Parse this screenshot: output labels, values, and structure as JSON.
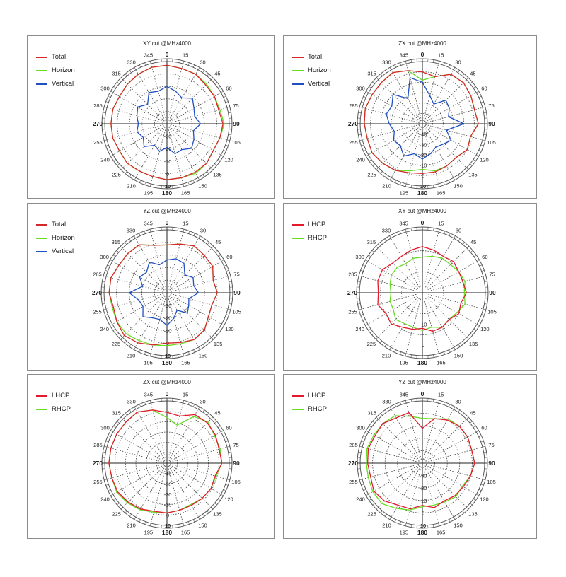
{
  "chart_data": [
    {
      "type": "polar-line",
      "title": "XY cut @MHz4000",
      "theta_labels": [
        "0",
        "15",
        "30",
        "45",
        "60",
        "75",
        "90",
        "105",
        "120",
        "135",
        "150",
        "165",
        "180",
        "195",
        "210",
        "225",
        "240",
        "255",
        "270",
        "285",
        "300",
        "315",
        "330",
        "345"
      ],
      "radial_labels": [
        "-30",
        "-20",
        "-10",
        "0",
        "10"
      ],
      "rlim": [
        -40,
        10
      ],
      "angles": [
        0,
        15,
        30,
        45,
        60,
        75,
        90,
        105,
        120,
        135,
        150,
        165,
        180,
        195,
        210,
        225,
        240,
        255,
        270,
        285,
        300,
        315,
        330,
        345
      ],
      "series": [
        {
          "name": "Total",
          "color": "#d62728",
          "values": [
            7,
            6,
            6,
            4,
            4,
            3,
            5,
            4,
            3,
            5,
            5,
            5,
            5,
            4,
            4,
            5,
            4,
            5,
            5,
            5,
            4,
            5,
            6,
            7
          ]
        },
        {
          "name": "Horizon",
          "color": "#66dd22",
          "values": [
            7,
            6,
            6,
            5,
            4,
            4,
            6,
            4,
            3,
            5,
            6,
            5,
            5,
            4,
            4,
            5,
            4,
            5,
            5,
            5,
            4,
            5,
            6,
            7
          ]
        },
        {
          "name": "Vertical",
          "color": "#1f4fc2",
          "values": [
            -10,
            -13,
            -16,
            -11,
            -15,
            -17,
            -13,
            -18,
            -15,
            -12,
            -16,
            -15,
            -21,
            -17,
            -20,
            -14,
            -18,
            -15,
            -17,
            -15,
            -13,
            -18,
            -11,
            -13
          ]
        }
      ]
    },
    {
      "type": "polar-line",
      "title": "ZX cut @MHz4000",
      "theta_labels": [
        "0",
        "15",
        "30",
        "45",
        "60",
        "75",
        "90",
        "105",
        "120",
        "135",
        "150",
        "165",
        "180",
        "195",
        "210",
        "225",
        "240",
        "255",
        "270",
        "285",
        "300",
        "315",
        "330",
        "345"
      ],
      "radial_labels": [
        "-40",
        "-30",
        "-20",
        "-10",
        "0",
        "10"
      ],
      "rlim": [
        -50,
        10
      ],
      "angles": [
        0,
        15,
        30,
        45,
        60,
        75,
        90,
        105,
        120,
        135,
        150,
        165,
        180,
        195,
        210,
        225,
        240,
        255,
        270,
        285,
        300,
        315,
        330,
        345
      ],
      "series": [
        {
          "name": "Total",
          "color": "#d62728",
          "values": [
            0,
            -3,
            5,
            6,
            4,
            2,
            4,
            -2,
            0,
            -4,
            -3,
            -2,
            -2,
            -1,
            2,
            4,
            6,
            5,
            6,
            7,
            6,
            6,
            7,
            3
          ]
        },
        {
          "name": "Horizon",
          "color": "#66dd22",
          "values": [
            -8,
            -3,
            5,
            6,
            4,
            2,
            4,
            -2,
            0,
            -4,
            -3,
            -3,
            -6,
            -3,
            2,
            4,
            6,
            5,
            6,
            7,
            6,
            6,
            7,
            3
          ]
        },
        {
          "name": "Vertical",
          "color": "#1f4fc2",
          "values": [
            -10,
            -22,
            -28,
            -18,
            -20,
            -24,
            -10,
            -26,
            -18,
            -22,
            -24,
            -20,
            -16,
            -20,
            -14,
            -20,
            -18,
            -22,
            -18,
            -14,
            -16,
            -10,
            -22,
            -4
          ]
        }
      ]
    },
    {
      "type": "polar-line",
      "title": "YZ cut @MHz4000",
      "theta_labels": [
        "0",
        "15",
        "30",
        "45",
        "60",
        "75",
        "90",
        "105",
        "120",
        "135",
        "150",
        "165",
        "180",
        "195",
        "210",
        "225",
        "240",
        "255",
        "270",
        "285",
        "300",
        "315",
        "330",
        "345"
      ],
      "radial_labels": [
        "-30",
        "-20",
        "-10",
        "0",
        "10"
      ],
      "rlim": [
        -40,
        10
      ],
      "angles": [
        0,
        15,
        30,
        45,
        60,
        75,
        90,
        105,
        120,
        135,
        150,
        165,
        180,
        195,
        210,
        225,
        240,
        255,
        270,
        285,
        300,
        315,
        330,
        345
      ],
      "series": [
        {
          "name": "Total",
          "color": "#d62728",
          "values": [
            -2,
            0,
            3,
            2,
            2,
            -2,
            0,
            -3,
            -2,
            2,
            3,
            1,
            0,
            3,
            6,
            8,
            6,
            4,
            6,
            6,
            4,
            4,
            4,
            -1
          ]
        },
        {
          "name": "Horizon",
          "color": "#66dd22",
          "values": [
            -2,
            0,
            3,
            2,
            2,
            -2,
            0,
            -3,
            -2,
            2,
            3,
            2,
            2,
            3,
            4,
            6,
            6,
            5,
            6,
            6,
            4,
            4,
            4,
            -1
          ]
        },
        {
          "name": "Vertical",
          "color": "#1f4fc2",
          "values": [
            -14,
            -12,
            -13,
            -20,
            -16,
            -18,
            -15,
            -22,
            -20,
            -17,
            -24,
            -19,
            -14,
            -18,
            -17,
            -13,
            -18,
            -17,
            -10,
            -20,
            -15,
            -17,
            -12,
            -17
          ]
        }
      ]
    },
    {
      "type": "polar-line",
      "title": "XY cut @MHz4000",
      "theta_labels": [
        "0",
        "15",
        "30",
        "45",
        "60",
        "75",
        "90",
        "105",
        "120",
        "135",
        "150",
        "165",
        "180",
        "195",
        "210",
        "225",
        "240",
        "255",
        "270",
        "285",
        "300",
        "315",
        "330",
        "345"
      ],
      "radial_labels": [
        "-10",
        "0"
      ],
      "rlim": [
        -25,
        5
      ],
      "angles": [
        0,
        15,
        30,
        45,
        60,
        75,
        90,
        105,
        120,
        135,
        150,
        165,
        180,
        195,
        210,
        225,
        240,
        255,
        270,
        285,
        300,
        315,
        330,
        345
      ],
      "series": [
        {
          "name": "LHCP",
          "color": "#e41a2c",
          "values": [
            -3,
            -4,
            -5,
            -4,
            -5,
            -5,
            -4,
            -6,
            -5,
            -7,
            -6,
            -6,
            -8,
            -7,
            -6,
            -4,
            -5,
            -3,
            -4,
            -3,
            -3,
            -5,
            -5,
            -4
          ]
        },
        {
          "name": "RHCP",
          "color": "#66dd22",
          "values": [
            -8,
            -7,
            -6,
            -6,
            -5,
            -4,
            -5,
            -4,
            -6,
            -7,
            -6,
            -8,
            -7,
            -8,
            -8,
            -7,
            -9,
            -9,
            -10,
            -9,
            -8,
            -8,
            -9,
            -8
          ]
        }
      ]
    },
    {
      "type": "polar-line",
      "title": "ZX cut @MHz4000",
      "theta_labels": [
        "0",
        "15",
        "30",
        "45",
        "60",
        "75",
        "90",
        "105",
        "120",
        "135",
        "150",
        "165",
        "180",
        "195",
        "210",
        "225",
        "240",
        "255",
        "270",
        "285",
        "300",
        "315",
        "330",
        "345"
      ],
      "radial_labels": [
        "-40",
        "-30",
        "-20",
        "-10",
        "0",
        "10"
      ],
      "rlim": [
        -50,
        10
      ],
      "angles": [
        0,
        15,
        30,
        45,
        60,
        75,
        90,
        105,
        120,
        135,
        150,
        165,
        180,
        195,
        210,
        225,
        240,
        255,
        270,
        285,
        300,
        315,
        330,
        345
      ],
      "series": [
        {
          "name": "LHCP",
          "color": "#e41a2c",
          "values": [
            -1,
            -3,
            4,
            5,
            4,
            2,
            3,
            -2,
            -1,
            -2,
            -3,
            -3,
            -2,
            -2,
            1,
            3,
            5,
            5,
            6,
            6,
            6,
            6,
            7,
            3
          ]
        },
        {
          "name": "RHCP",
          "color": "#66dd22",
          "values": [
            -6,
            -12,
            2,
            6,
            3,
            3,
            3,
            -1,
            -1,
            -2,
            -4,
            -3,
            -2,
            -1,
            2,
            4,
            6,
            5,
            6,
            6,
            6,
            6,
            7,
            3
          ]
        }
      ]
    },
    {
      "type": "polar-line",
      "title": "YZ cut @MHz4000",
      "theta_labels": [
        "0",
        "15",
        "30",
        "45",
        "60",
        "75",
        "90",
        "105",
        "120",
        "135",
        "150",
        "165",
        "180",
        "195",
        "210",
        "225",
        "240",
        "255",
        "270",
        "285",
        "300",
        "315",
        "330",
        "345"
      ],
      "radial_labels": [
        "-30",
        "-20",
        "-10",
        "0",
        "10"
      ],
      "rlim": [
        -40,
        10
      ],
      "angles": [
        0,
        15,
        30,
        45,
        60,
        75,
        90,
        105,
        120,
        135,
        150,
        165,
        180,
        195,
        210,
        225,
        240,
        255,
        270,
        285,
        300,
        315,
        330,
        345
      ],
      "series": [
        {
          "name": "LHCP",
          "color": "#e41a2c",
          "values": [
            -12,
            -3,
            0,
            2,
            2,
            1,
            2,
            0,
            -2,
            -3,
            -5,
            -3,
            -6,
            -2,
            -1,
            3,
            5,
            3,
            4,
            5,
            4,
            5,
            2,
            2
          ]
        },
        {
          "name": "RHCP",
          "color": "#66dd22",
          "values": [
            -4,
            -3,
            1,
            2,
            2,
            1,
            2,
            0,
            -3,
            -2,
            -4,
            -5,
            -5,
            -1,
            2,
            6,
            6,
            5,
            5,
            6,
            5,
            5,
            4,
            -1
          ]
        }
      ]
    }
  ]
}
